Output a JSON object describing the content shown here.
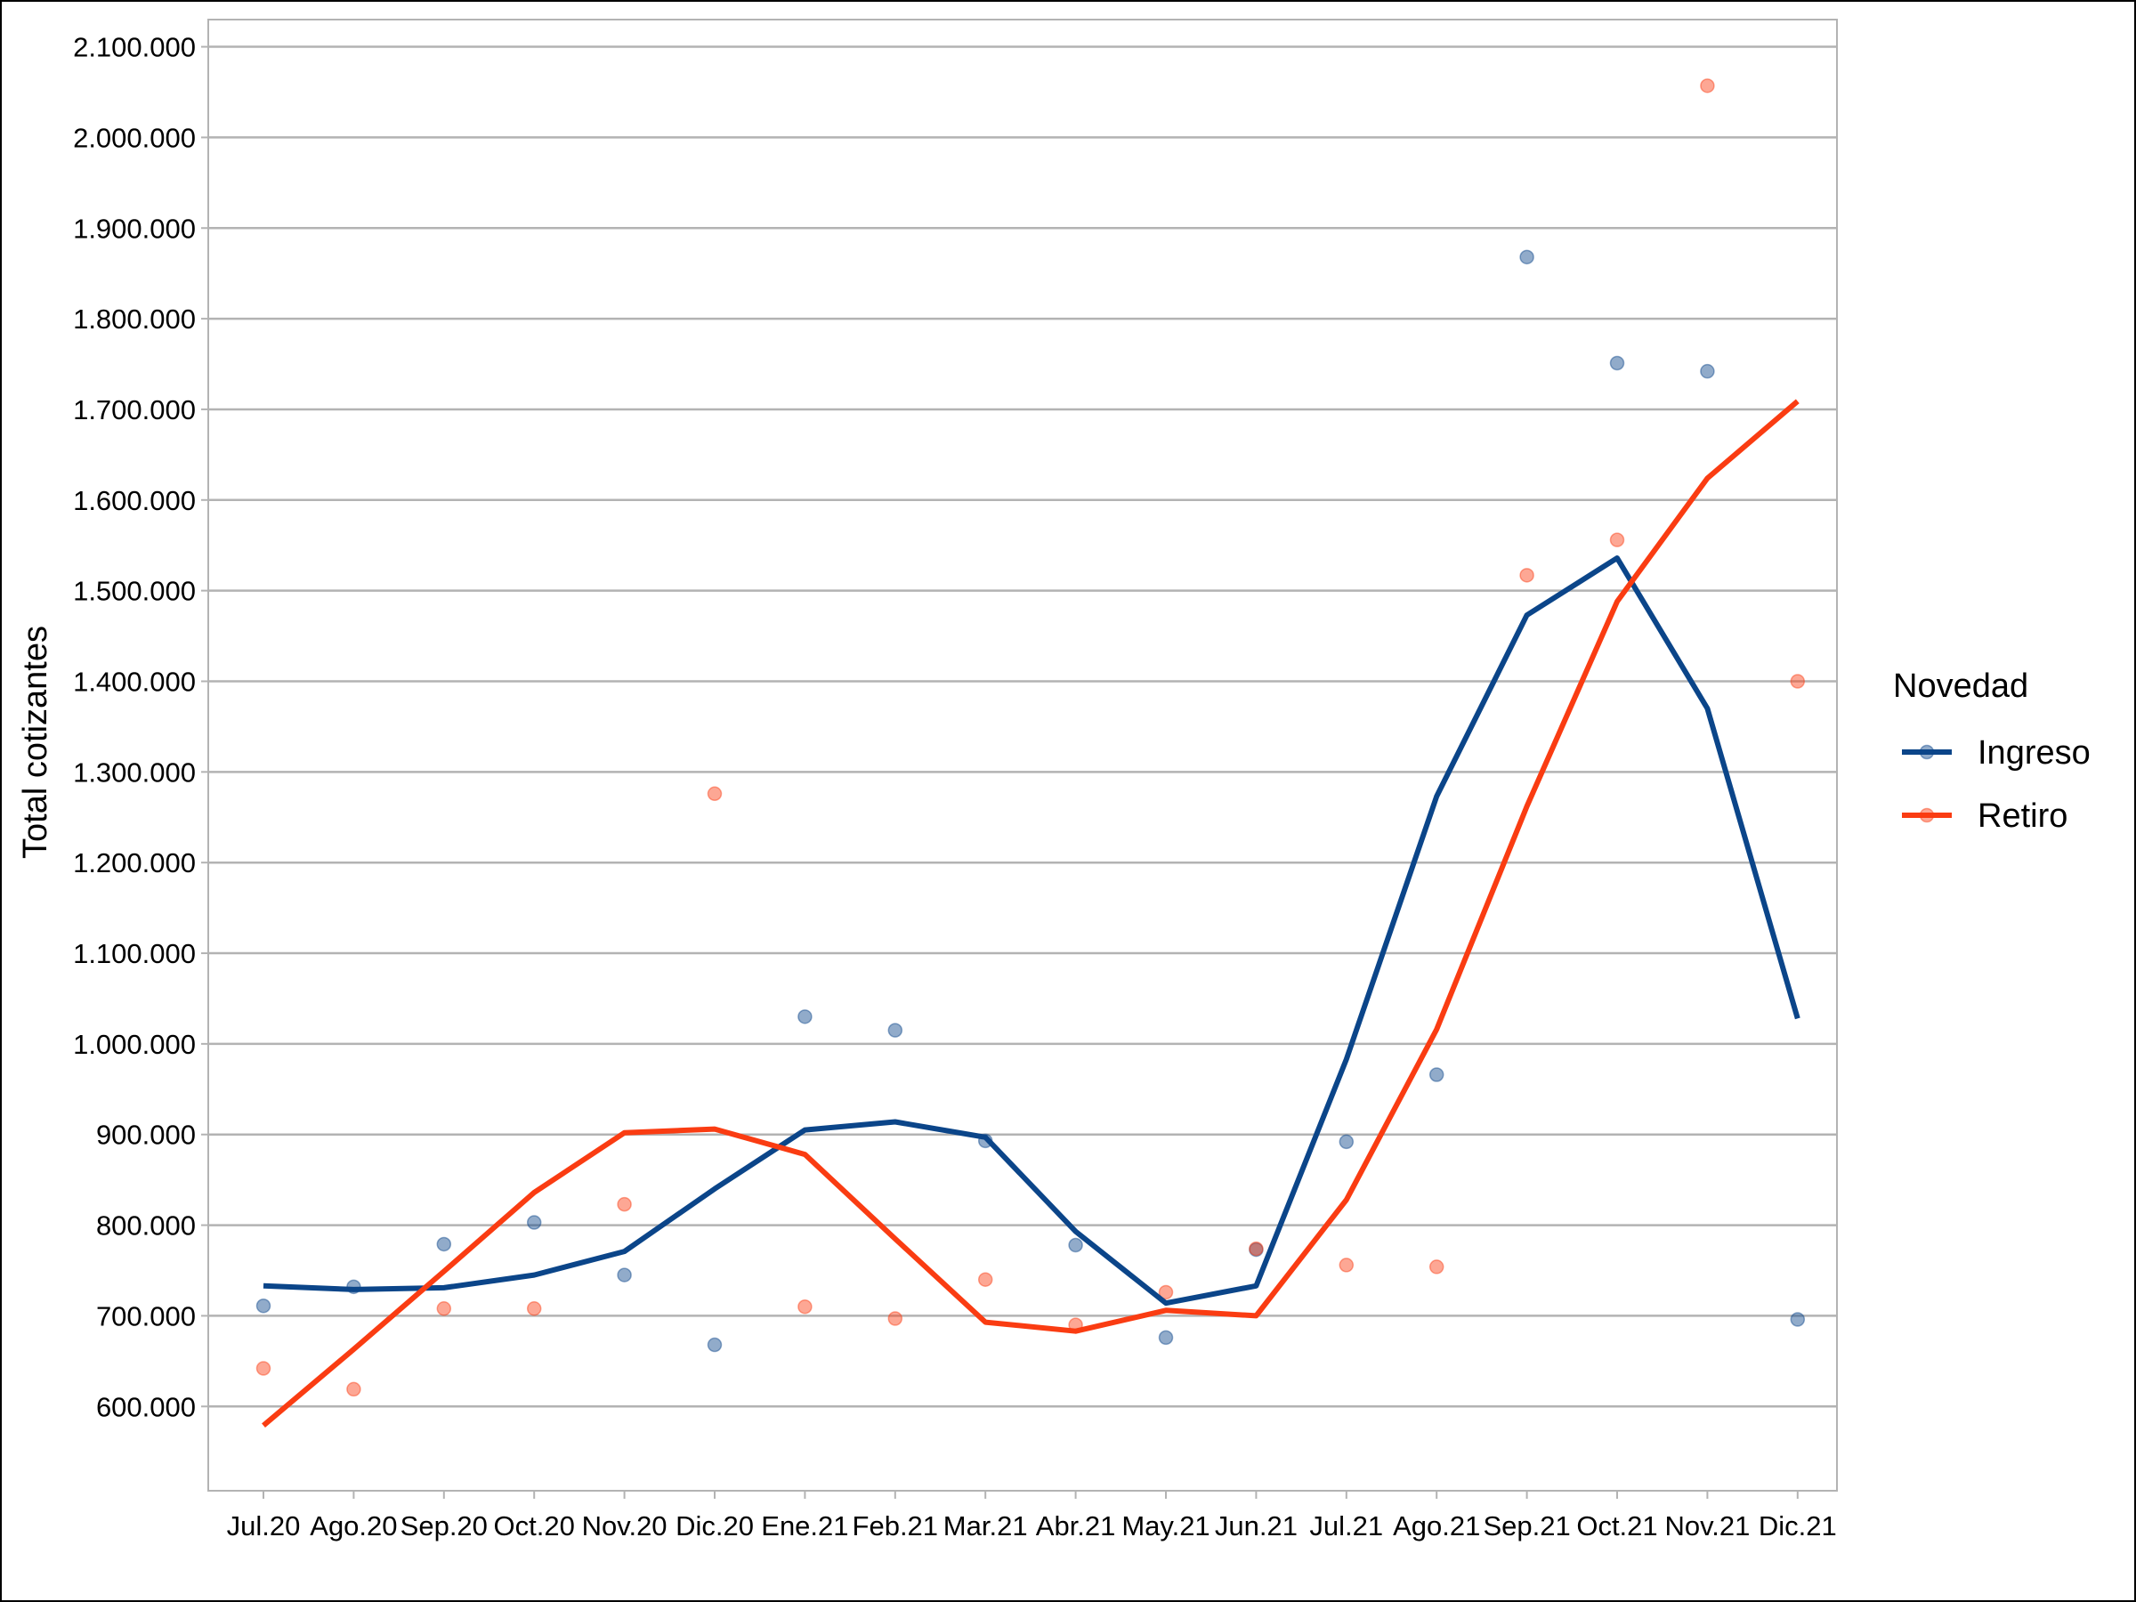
{
  "chart_data": {
    "type": "line",
    "ylabel": "Total cotizantes",
    "xlabel": "",
    "title": "",
    "categories": [
      "Jul.20",
      "Ago.20",
      "Sep.20",
      "Oct.20",
      "Nov.20",
      "Dic.20",
      "Ene.21",
      "Feb.21",
      "Mar.21",
      "Abr.21",
      "May.21",
      "Jun.21",
      "Jul.21",
      "Ago.21",
      "Sep.21",
      "Oct.21",
      "Nov.21",
      "Dic.21"
    ],
    "ylim": [
      507000,
      2130000
    ],
    "yticks": [
      600000,
      700000,
      800000,
      900000,
      1000000,
      1100000,
      1200000,
      1300000,
      1400000,
      1500000,
      1600000,
      1700000,
      1800000,
      1900000,
      2000000,
      2100000
    ],
    "ytick_labels": [
      "600.000",
      "700.000",
      "800.000",
      "900.000",
      "1.000.000",
      "1.100.000",
      "1.200.000",
      "1.300.000",
      "1.400.000",
      "1.500.000",
      "1.600.000",
      "1.700.000",
      "1.800.000",
      "1.900.000",
      "2.000.000",
      "2.100.000"
    ],
    "grid": true,
    "legend": {
      "title": "Novedad",
      "position": "right"
    },
    "series": [
      {
        "name": "Ingreso",
        "color": "#0b4589",
        "points": [
          711000,
          732000,
          779000,
          803000,
          745000,
          668000,
          1030000,
          1015000,
          893000,
          778000,
          676000,
          773000,
          892000,
          966000,
          1868000,
          1751000,
          1742000,
          696000
        ],
        "trend": [
          733000,
          729000,
          731000,
          745000,
          771000,
          840000,
          905000,
          914000,
          897000,
          793000,
          714000,
          733000,
          983000,
          1273000,
          1473000,
          1536000,
          1370000,
          1028000
        ]
      },
      {
        "name": "Retiro",
        "color": "#fa3c12",
        "points": [
          642000,
          619000,
          708000,
          708000,
          823000,
          1276000,
          710000,
          697000,
          740000,
          690000,
          726000,
          774000,
          756000,
          754000,
          1517000,
          1556000,
          2057000,
          1400000
        ],
        "trend": [
          579000,
          663000,
          749000,
          836000,
          902000,
          906000,
          878000,
          785000,
          693000,
          683000,
          706000,
          700000,
          828000,
          1016000,
          1262000,
          1488000,
          1624000,
          1709000
        ]
      }
    ]
  }
}
